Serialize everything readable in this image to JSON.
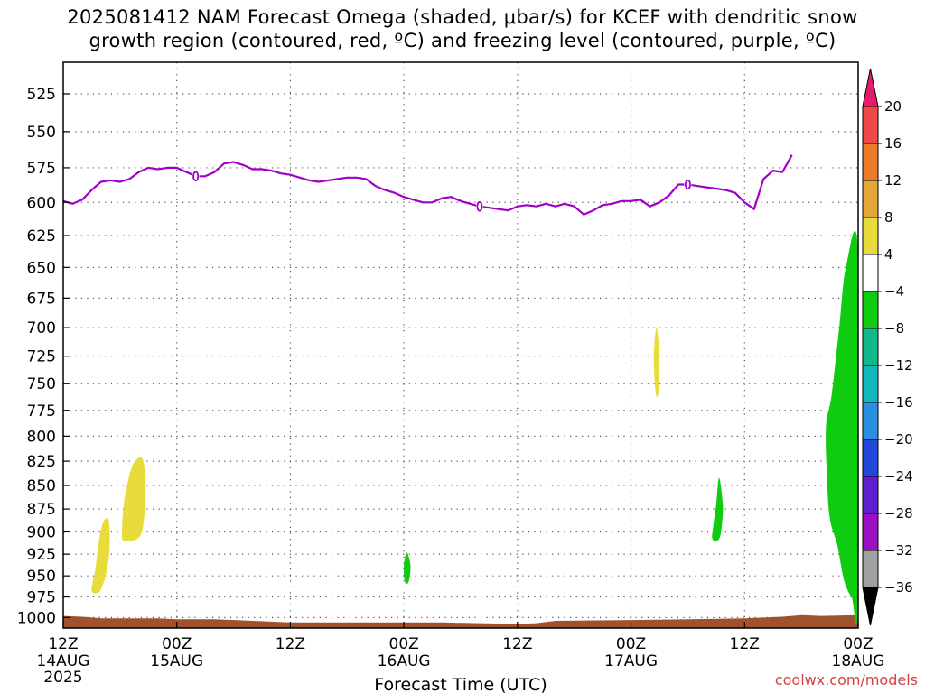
{
  "title": {
    "line1": "2025081412 NAM Forecast Omega (shaded, μbar/s) for KCEF with dendritic snow",
    "line2": "growth region (contoured, red, ºC) and freezing level (contoured, purple, ºC)"
  },
  "xlabel": "Forecast Time (UTC)",
  "credit": "coolwx.com/models",
  "chart_data": {
    "type": "heatmap",
    "title": "2025081412 NAM Forecast Omega (shaded, μbar/s) for KCEF with dendritic snow growth region (contoured, red, ºC) and freezing level (contoured, purple, ºC)",
    "xlabel": "Forecast Time (UTC)",
    "ylabel": "",
    "x_range_hours": [
      0,
      84
    ],
    "y_axis": {
      "scale": "log-pressure",
      "inverted": true,
      "range_mb": [
        1013,
        505
      ]
    },
    "x_ticks": [
      {
        "hour": 0,
        "label": "12Z",
        "sub": "14AUG",
        "sub2": "2025"
      },
      {
        "hour": 12,
        "label": "00Z",
        "sub": "15AUG",
        "sub2": ""
      },
      {
        "hour": 24,
        "label": "12Z",
        "sub": "",
        "sub2": ""
      },
      {
        "hour": 36,
        "label": "00Z",
        "sub": "16AUG",
        "sub2": ""
      },
      {
        "hour": 48,
        "label": "12Z",
        "sub": "",
        "sub2": ""
      },
      {
        "hour": 60,
        "label": "00Z",
        "sub": "17AUG",
        "sub2": ""
      },
      {
        "hour": 72,
        "label": "12Z",
        "sub": "",
        "sub2": ""
      },
      {
        "hour": 84,
        "label": "00Z",
        "sub": "18AUG",
        "sub2": ""
      }
    ],
    "y_ticks": [
      525,
      550,
      575,
      600,
      625,
      650,
      675,
      700,
      725,
      750,
      775,
      800,
      825,
      850,
      875,
      900,
      925,
      950,
      975,
      1000
    ],
    "grid": true,
    "colorbar": {
      "labels": [
        "20",
        "16",
        "12",
        "8",
        "4",
        "-4",
        "-8",
        "-12",
        "-16",
        "-20",
        "-24",
        "-28",
        "-32",
        "-36"
      ],
      "colors": [
        "#e8186e",
        "#f04848",
        "#ee7a2c",
        "#e4a634",
        "#e8dc3c",
        "#ffffff",
        "#10cc10",
        "#10b88a",
        "#10b8bc",
        "#2c8ee0",
        "#2048dc",
        "#5c20cc",
        "#9c10c4",
        "#a0a0a0",
        "#000000"
      ]
    },
    "freezing_level": {
      "color": "#a000c8",
      "label": "0",
      "points": [
        [
          0,
          599
        ],
        [
          1,
          601
        ],
        [
          2,
          598
        ],
        [
          3,
          591
        ],
        [
          4,
          585
        ],
        [
          5,
          584
        ],
        [
          6,
          585
        ],
        [
          7,
          583
        ],
        [
          8,
          578
        ],
        [
          9,
          575
        ],
        [
          10,
          576
        ],
        [
          11,
          575
        ],
        [
          12,
          575
        ],
        [
          13,
          578
        ],
        [
          14,
          581
        ],
        [
          15,
          581
        ],
        [
          16,
          578
        ],
        [
          17,
          572
        ],
        [
          18,
          571
        ],
        [
          19,
          573
        ],
        [
          20,
          576
        ],
        [
          21,
          576
        ],
        [
          22,
          577
        ],
        [
          23,
          579
        ],
        [
          24,
          580
        ],
        [
          25,
          582
        ],
        [
          26,
          584
        ],
        [
          27,
          585
        ],
        [
          28,
          584
        ],
        [
          29,
          583
        ],
        [
          30,
          582
        ],
        [
          31,
          582
        ],
        [
          32,
          583
        ],
        [
          33,
          588
        ],
        [
          34,
          591
        ],
        [
          35,
          593
        ],
        [
          36,
          596
        ],
        [
          37,
          598
        ],
        [
          38,
          600
        ],
        [
          39,
          600
        ],
        [
          40,
          597
        ],
        [
          41,
          596
        ],
        [
          42,
          599
        ],
        [
          43,
          601
        ],
        [
          44,
          603
        ],
        [
          45,
          604
        ],
        [
          46,
          605
        ],
        [
          47,
          606
        ],
        [
          48,
          603
        ],
        [
          49,
          602
        ],
        [
          50,
          603
        ],
        [
          51,
          601
        ],
        [
          52,
          603
        ],
        [
          53,
          601
        ],
        [
          54,
          603
        ],
        [
          55,
          609
        ],
        [
          56,
          606
        ],
        [
          57,
          602
        ],
        [
          58,
          601
        ],
        [
          59,
          599
        ],
        [
          60,
          599
        ],
        [
          61,
          598
        ],
        [
          62,
          603
        ],
        [
          63,
          600
        ],
        [
          64,
          595
        ],
        [
          65,
          587
        ],
        [
          66,
          587
        ],
        [
          67,
          588
        ],
        [
          68,
          589
        ],
        [
          69,
          590
        ],
        [
          70,
          591
        ],
        [
          71,
          593
        ],
        [
          72,
          600
        ],
        [
          73,
          605
        ],
        [
          74,
          583
        ],
        [
          75,
          577
        ],
        [
          76,
          578
        ],
        [
          77,
          566
        ]
      ],
      "labels_at": [
        [
          14,
          581
        ],
        [
          44,
          603
        ],
        [
          66,
          587
        ]
      ]
    },
    "omega_regions": [
      {
        "value_band": "4 to 8",
        "color": "#e8dc3c",
        "outline": [
          [
            3,
            967
          ],
          [
            3.4,
            942
          ],
          [
            3.7,
            915
          ],
          [
            4.2,
            890
          ],
          [
            4.8,
            887
          ],
          [
            4.9,
            918
          ],
          [
            4.6,
            945
          ],
          [
            4.2,
            960
          ],
          [
            3.7,
            970
          ]
        ]
      },
      {
        "value_band": "4 to 8",
        "color": "#e8dc3c",
        "outline": [
          [
            6.2,
            905
          ],
          [
            6.4,
            870
          ],
          [
            6.9,
            843
          ],
          [
            7.5,
            826
          ],
          [
            8.4,
            823
          ],
          [
            8.7,
            850
          ],
          [
            8.6,
            880
          ],
          [
            8.2,
            903
          ],
          [
            7.3,
            910
          ],
          [
            6.6,
            910
          ]
        ]
      },
      {
        "value_band": "4 to 8",
        "color": "#e8dc3c",
        "outline": [
          [
            62.6,
            758
          ],
          [
            62.4,
            725
          ],
          [
            62.7,
            700
          ],
          [
            63.0,
            725
          ],
          [
            62.9,
            758
          ]
        ]
      },
      {
        "value_band": "-8 to -4",
        "color": "#10cc10",
        "outline": [
          [
            36.1,
            957
          ],
          [
            36.0,
            938
          ],
          [
            36.3,
            923
          ],
          [
            36.7,
            938
          ],
          [
            36.5,
            957
          ]
        ]
      },
      {
        "value_band": "-8 to -4",
        "color": "#10cc10",
        "outline": [
          [
            68.6,
            908
          ],
          [
            68.7,
            893
          ],
          [
            69.0,
            870
          ],
          [
            69.3,
            842
          ],
          [
            69.7,
            870
          ],
          [
            69.6,
            893
          ],
          [
            69.3,
            908
          ]
        ]
      },
      {
        "value_band": "-8 to -4",
        "color": "#10cc10",
        "outline": [
          [
            80.6,
            790
          ],
          [
            81.2,
            760
          ],
          [
            82.0,
            700
          ],
          [
            82.7,
            650
          ],
          [
            84,
            640
          ],
          [
            84,
            978
          ],
          [
            83.3,
            975
          ],
          [
            82.5,
            955
          ],
          [
            81.8,
            915
          ],
          [
            81.0,
            885
          ],
          [
            80.7,
            840
          ]
        ]
      }
    ],
    "surface": {
      "color": "#a0522d",
      "description": "ground below surface pressure",
      "points": [
        [
          0,
          998
        ],
        [
          2,
          999
        ],
        [
          4,
          1001
        ],
        [
          10,
          1001
        ],
        [
          12,
          1002
        ],
        [
          16,
          1002
        ],
        [
          20,
          1004
        ],
        [
          24,
          1006
        ],
        [
          36,
          1006
        ],
        [
          40,
          1006
        ],
        [
          48,
          1008
        ],
        [
          50,
          1007
        ],
        [
          52,
          1004
        ],
        [
          60,
          1003
        ],
        [
          66,
          1002
        ],
        [
          72,
          1001
        ],
        [
          76,
          999
        ],
        [
          78,
          997
        ],
        [
          80,
          998
        ],
        [
          84,
          997
        ]
      ]
    }
  }
}
